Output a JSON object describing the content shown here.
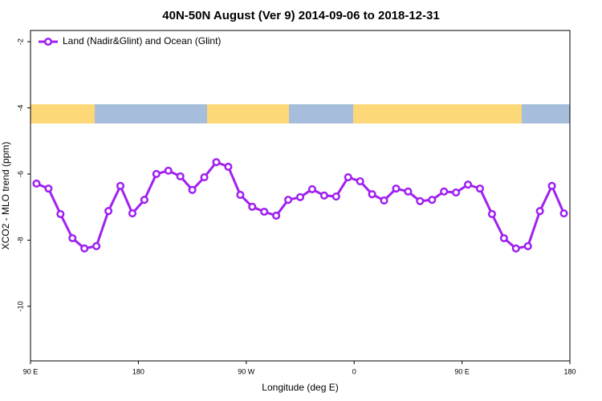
{
  "chart_data": {
    "type": "line",
    "title": "40N-50N August (Ver 9)   2014-09-06 to 2018-12-31",
    "x_label": "Longitude (deg E)",
    "y_label": "XCO2 - MLO trend (ppm)",
    "x": [
      95,
      105,
      115,
      125,
      135,
      145,
      155,
      165,
      175,
      185,
      195,
      205,
      215,
      225,
      235,
      245,
      255,
      265,
      275,
      285,
      295,
      305,
      315,
      325,
      335,
      345,
      355,
      365,
      375,
      385,
      395,
      405,
      415,
      425,
      435,
      445,
      455,
      465,
      475,
      485,
      495,
      505,
      515,
      525,
      535
    ],
    "series": [
      {
        "name": "Land (Nadir&Glint) and Ocean (Glint)",
        "color": "#a020f0",
        "values": [
          -6.29,
          -6.44,
          -7.21,
          -7.94,
          -8.25,
          -8.18,
          -7.12,
          -6.36,
          -7.19,
          -6.78,
          -6.0,
          -5.9,
          -6.07,
          -6.48,
          -6.1,
          -5.64,
          -5.78,
          -6.63,
          -6.99,
          -7.14,
          -7.26,
          -6.78,
          -6.7,
          -6.46,
          -6.65,
          -6.68,
          -6.1,
          -6.22,
          -6.61,
          -6.8,
          -6.44,
          -6.53,
          -6.82,
          -6.78,
          -6.53,
          -6.56,
          -6.32,
          -6.44,
          -7.21,
          -7.94,
          -8.25,
          -8.18,
          -7.12,
          -6.36,
          -7.19
        ]
      }
    ],
    "xlim": [
      90,
      540
    ],
    "xticks": [
      {
        "value": 90,
        "label": "90 E"
      },
      {
        "value": 180,
        "label": "180"
      },
      {
        "value": 270,
        "label": "90 W"
      },
      {
        "value": 360,
        "label": "0"
      },
      {
        "value": 450,
        "label": "90 E"
      },
      {
        "value": 540,
        "label": "180"
      }
    ],
    "ylim": [
      -11.65,
      -1.66
    ],
    "yticks": [
      -2,
      -4,
      -6,
      -8,
      -10
    ],
    "legend": "top-left"
  }
}
